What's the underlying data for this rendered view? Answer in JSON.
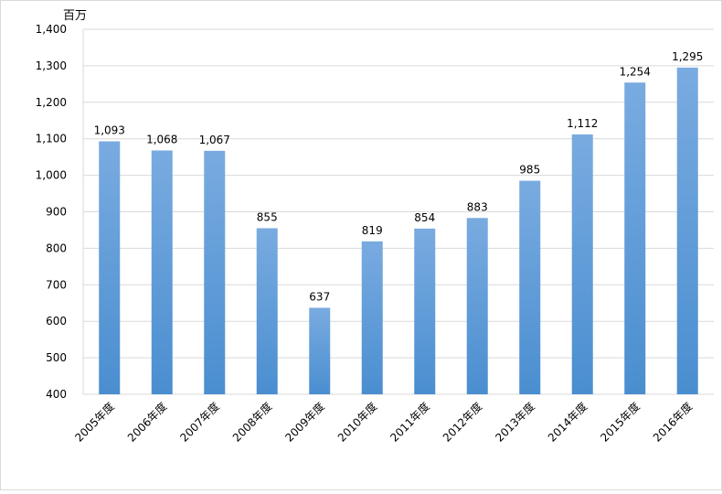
{
  "chart_data": {
    "type": "bar",
    "unit_label": "百万",
    "categories": [
      "2005年度",
      "2006年度",
      "2007年度",
      "2008年度",
      "2009年度",
      "2010年度",
      "2011年度",
      "2012年度",
      "2013年度",
      "2014年度",
      "2015年度",
      "2016年度"
    ],
    "values": [
      1093,
      1068,
      1067,
      855,
      637,
      819,
      854,
      883,
      985,
      1112,
      1254,
      1295
    ],
    "value_labels": [
      "1,093",
      "1,068",
      "1,067",
      "855",
      "637",
      "819",
      "854",
      "883",
      "985",
      "1,112",
      "1,254",
      "1,295"
    ],
    "ylim": [
      400,
      1400
    ],
    "y_ticks": [
      400,
      500,
      600,
      700,
      800,
      900,
      1000,
      1100,
      1200,
      1300,
      1400
    ],
    "y_tick_labels": [
      "400",
      "500",
      "600",
      "700",
      "800",
      "900",
      "1,000",
      "1,100",
      "1,200",
      "1,300",
      "1,400"
    ],
    "grid": true,
    "legend": "none",
    "bar_color_top": "#79abe0",
    "bar_color_bottom": "#4a8ed0",
    "grid_color": "#d9d9d9"
  }
}
